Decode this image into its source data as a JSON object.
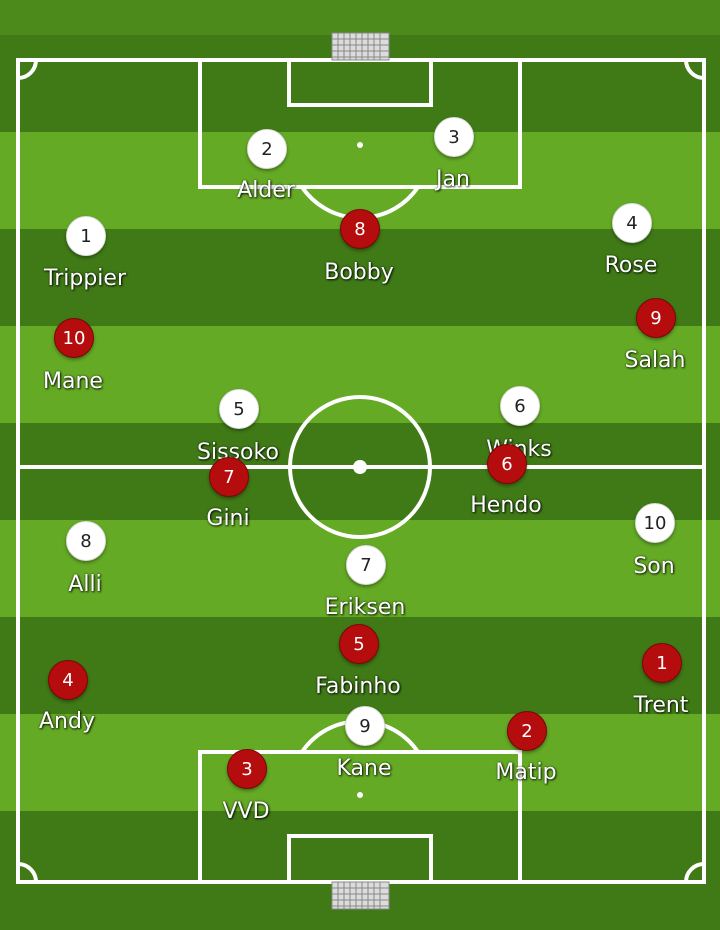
{
  "pitch": {
    "colors": {
      "dark_stripe": "#3f7a16",
      "light_stripe": "#64aa25",
      "lines": "#ffffff"
    }
  },
  "teams": {
    "white": {
      "disc_color": "#ffffff",
      "number_color": "#222222"
    },
    "red": {
      "disc_color": "#b50d0d",
      "number_color": "#ffffff"
    }
  },
  "players": [
    {
      "team": "white",
      "number": "2",
      "name": "Alder"
    },
    {
      "team": "white",
      "number": "3",
      "name": "Jan"
    },
    {
      "team": "white",
      "number": "1",
      "name": "Trippier"
    },
    {
      "team": "white",
      "number": "4",
      "name": "Rose"
    },
    {
      "team": "white",
      "number": "5",
      "name": "Sissoko"
    },
    {
      "team": "white",
      "number": "6",
      "name": "Winks"
    },
    {
      "team": "white",
      "number": "8",
      "name": "Alli"
    },
    {
      "team": "white",
      "number": "10",
      "name": "Son"
    },
    {
      "team": "white",
      "number": "7",
      "name": "Eriksen"
    },
    {
      "team": "white",
      "number": "9",
      "name": "Kane"
    },
    {
      "team": "red",
      "number": "8",
      "name": "Bobby"
    },
    {
      "team": "red",
      "number": "10",
      "name": "Mane"
    },
    {
      "team": "red",
      "number": "9",
      "name": "Salah"
    },
    {
      "team": "red",
      "number": "7",
      "name": "Gini"
    },
    {
      "team": "red",
      "number": "6",
      "name": "Hendo"
    },
    {
      "team": "red",
      "number": "5",
      "name": "Fabinho"
    },
    {
      "team": "red",
      "number": "4",
      "name": "Andy"
    },
    {
      "team": "red",
      "number": "1",
      "name": "Trent"
    },
    {
      "team": "red",
      "number": "3",
      "name": "VVD"
    },
    {
      "team": "red",
      "number": "2",
      "name": "Matip"
    }
  ]
}
